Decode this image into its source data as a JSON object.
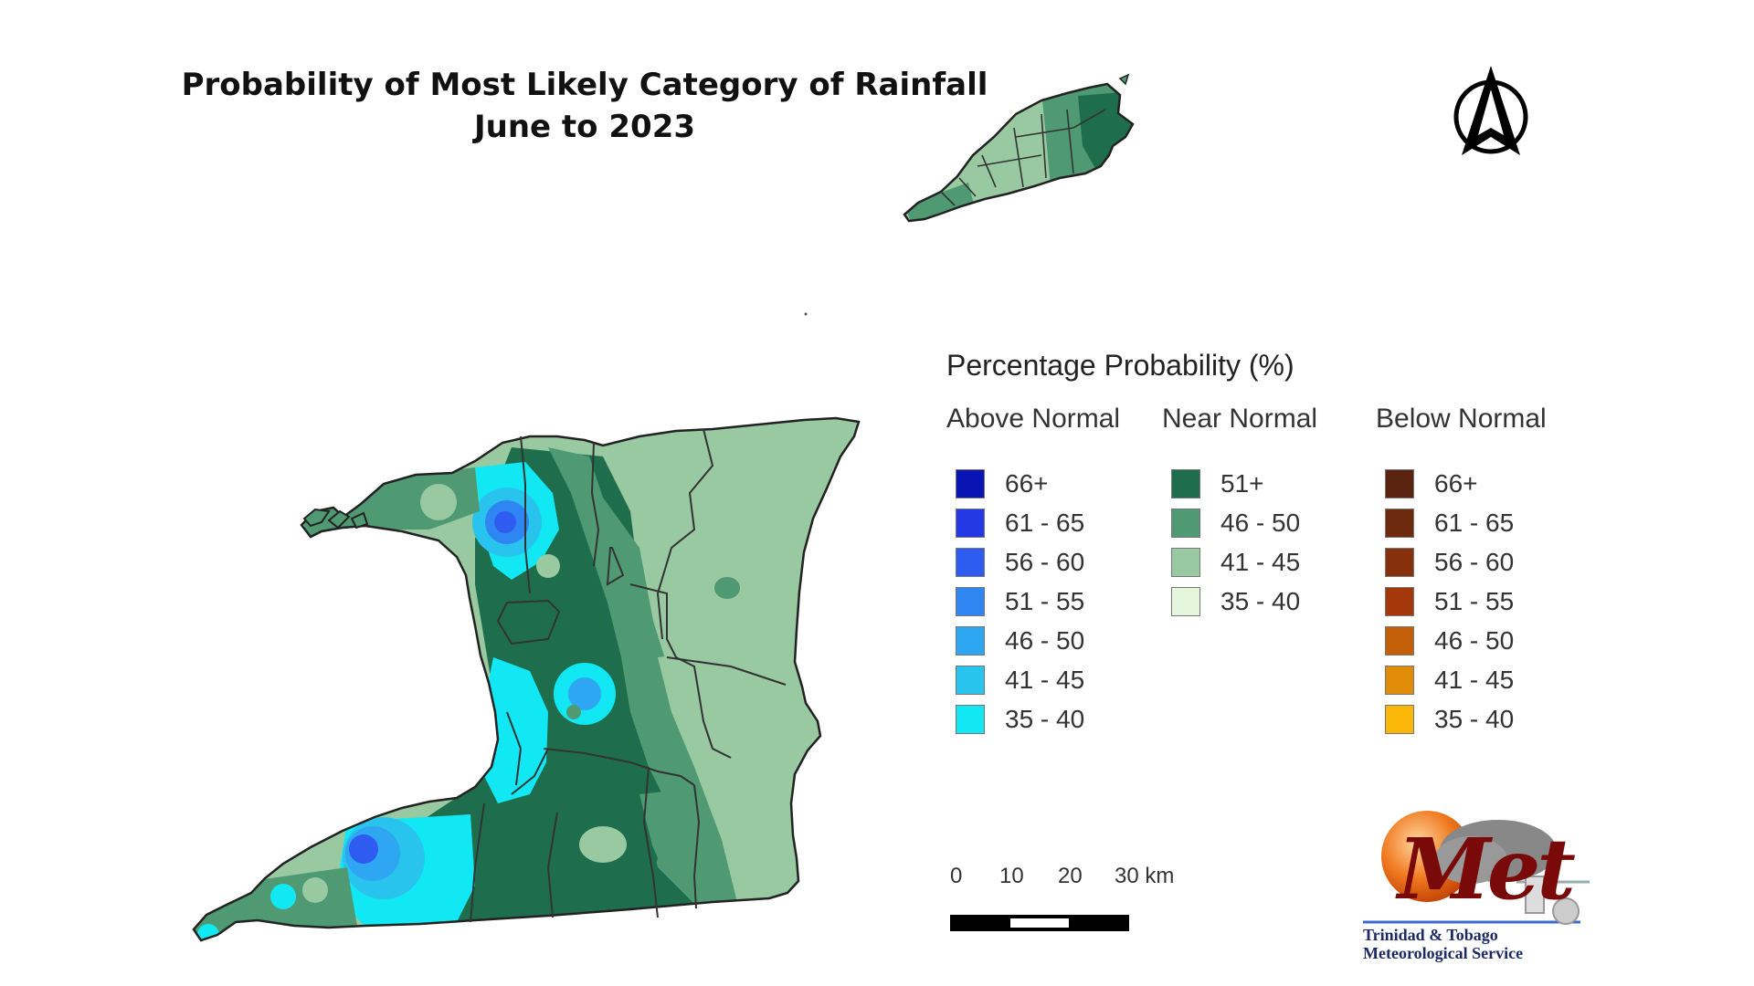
{
  "title": {
    "line1": "Probability of Most Likely Category of Rainfall",
    "line2": "June to 2023"
  },
  "north_arrow": {
    "icon": "north-arrow-icon"
  },
  "legend": {
    "title": "Percentage Probability (%)",
    "columns": [
      {
        "header": "Above Normal",
        "items": [
          {
            "label": "66+",
            "color": "#0a14b4"
          },
          {
            "label": "61 - 65",
            "color": "#2438e6"
          },
          {
            "label": "56 - 60",
            "color": "#2f5cf0"
          },
          {
            "label": "51 - 55",
            "color": "#2f86f2"
          },
          {
            "label": "46 - 50",
            "color": "#2fa6f2"
          },
          {
            "label": "41 - 45",
            "color": "#28c4ee"
          },
          {
            "label": "35 - 40",
            "color": "#12e8f4"
          }
        ]
      },
      {
        "header": "Near Normal",
        "items": [
          {
            "label": "51+",
            "color": "#1e6e4e"
          },
          {
            "label": "46 - 50",
            "color": "#4f9a72"
          },
          {
            "label": "41 - 45",
            "color": "#98c9a0"
          },
          {
            "label": "35 - 40",
            "color": "#e4f7dc"
          }
        ]
      },
      {
        "header": "Below Normal",
        "items": [
          {
            "label": "66+",
            "color": "#5a2410"
          },
          {
            "label": "61 - 65",
            "color": "#6e2a0e"
          },
          {
            "label": "56 - 60",
            "color": "#86300c"
          },
          {
            "label": "51 - 55",
            "color": "#a4380a"
          },
          {
            "label": "46 - 50",
            "color": "#c4600a"
          },
          {
            "label": "41 - 45",
            "color": "#e08c08"
          },
          {
            "label": "35 - 40",
            "color": "#fcb808"
          }
        ]
      }
    ]
  },
  "scale_bar": {
    "ticks": [
      "0",
      "10",
      "20",
      "30 km"
    ]
  },
  "logo": {
    "word": "Met",
    "line1": "Trinidad & Tobago",
    "line2": "Meteorological Service"
  }
}
